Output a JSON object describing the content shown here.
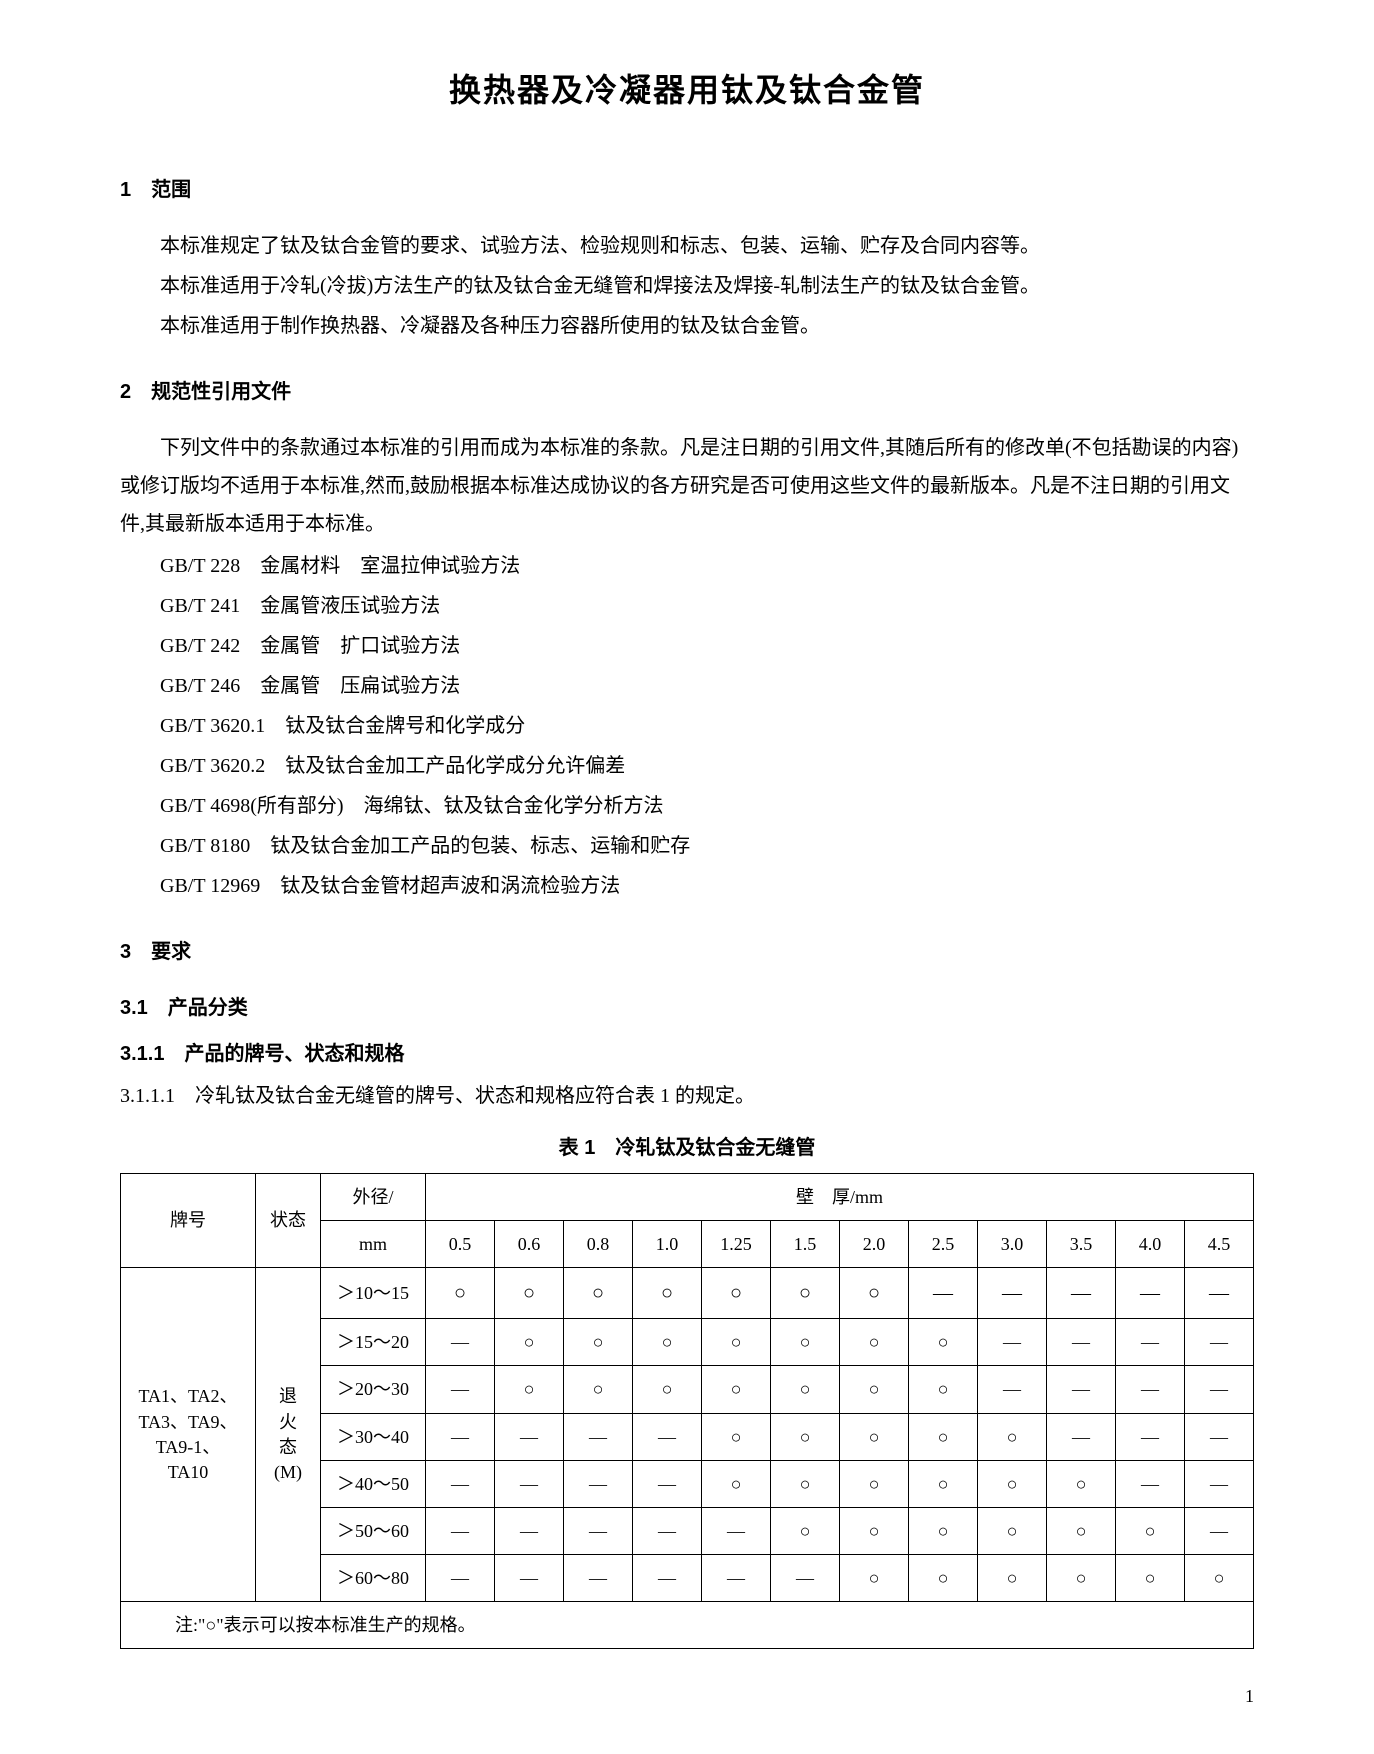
{
  "title": "换热器及冷凝器用钛及钛合金管",
  "section1": {
    "heading": "1　范围",
    "p1": "本标准规定了钛及钛合金管的要求、试验方法、检验规则和标志、包装、运输、贮存及合同内容等。",
    "p2": "本标准适用于冷轧(冷拔)方法生产的钛及钛合金无缝管和焊接法及焊接-轧制法生产的钛及钛合金管。",
    "p3": "本标准适用于制作换热器、冷凝器及各种压力容器所使用的钛及钛合金管。"
  },
  "section2": {
    "heading": "2　规范性引用文件",
    "p1": "下列文件中的条款通过本标准的引用而成为本标准的条款。凡是注日期的引用文件,其随后所有的修改单(不包括勘误的内容)或修订版均不适用于本标准,然而,鼓励根据本标准达成协议的各方研究是否可使用这些文件的最新版本。凡是不注日期的引用文件,其最新版本适用于本标准。",
    "refs": [
      "GB/T 228　金属材料　室温拉伸试验方法",
      "GB/T 241　金属管液压试验方法",
      "GB/T 242　金属管　扩口试验方法",
      "GB/T 246　金属管　压扁试验方法",
      "GB/T 3620.1　钛及钛合金牌号和化学成分",
      "GB/T 3620.2　钛及钛合金加工产品化学成分允许偏差",
      "GB/T 4698(所有部分)　海绵钛、钛及钛合金化学分析方法",
      "GB/T 8180　钛及钛合金加工产品的包装、标志、运输和贮存",
      "GB/T 12969　钛及钛合金管材超声波和涡流检验方法"
    ]
  },
  "section3": {
    "heading": "3　要求",
    "s31": "3.1　产品分类",
    "s311": "3.1.1　产品的牌号、状态和规格",
    "s3111": "3.1.1.1　冷轧钛及钛合金无缝管的牌号、状态和规格应符合表 1 的规定。"
  },
  "table1": {
    "caption": "表 1　冷轧钛及钛合金无缝管",
    "header": {
      "grade": "牌号",
      "state": "状态",
      "od": "外径/",
      "od_unit": "mm",
      "wt": "壁　厚/mm"
    },
    "wt_cols": [
      "0.5",
      "0.6",
      "0.8",
      "1.0",
      "1.25",
      "1.5",
      "2.0",
      "2.5",
      "3.0",
      "3.5",
      "4.0",
      "4.5"
    ],
    "grade_cell": {
      "l1": "TA1、TA2、",
      "l2": "TA3、TA9、",
      "l3": "TA9-1、",
      "l4": "TA10"
    },
    "state_cell": {
      "l1": "退",
      "l2": "火",
      "l3": "态",
      "l4": "(M)"
    },
    "rows": [
      {
        "od": "＞10～15",
        "marks": [
          "○",
          "○",
          "○",
          "○",
          "○",
          "○",
          "○",
          "—",
          "—",
          "—",
          "—",
          "—"
        ]
      },
      {
        "od": "＞15～20",
        "marks": [
          "—",
          "○",
          "○",
          "○",
          "○",
          "○",
          "○",
          "○",
          "—",
          "—",
          "—",
          "—"
        ]
      },
      {
        "od": "＞20～30",
        "marks": [
          "—",
          "○",
          "○",
          "○",
          "○",
          "○",
          "○",
          "○",
          "—",
          "—",
          "—",
          "—"
        ]
      },
      {
        "od": "＞30～40",
        "marks": [
          "—",
          "—",
          "—",
          "—",
          "○",
          "○",
          "○",
          "○",
          "○",
          "—",
          "—",
          "—"
        ]
      },
      {
        "od": "＞40～50",
        "marks": [
          "—",
          "—",
          "—",
          "—",
          "○",
          "○",
          "○",
          "○",
          "○",
          "○",
          "—",
          "—"
        ]
      },
      {
        "od": "＞50～60",
        "marks": [
          "—",
          "—",
          "—",
          "—",
          "—",
          "○",
          "○",
          "○",
          "○",
          "○",
          "○",
          "—"
        ]
      },
      {
        "od": "＞60～80",
        "marks": [
          "—",
          "—",
          "—",
          "—",
          "—",
          "—",
          "○",
          "○",
          "○",
          "○",
          "○",
          "○"
        ]
      }
    ],
    "note": "注:\"○\"表示可以按本标准生产的规格。"
  },
  "page_number": "1"
}
